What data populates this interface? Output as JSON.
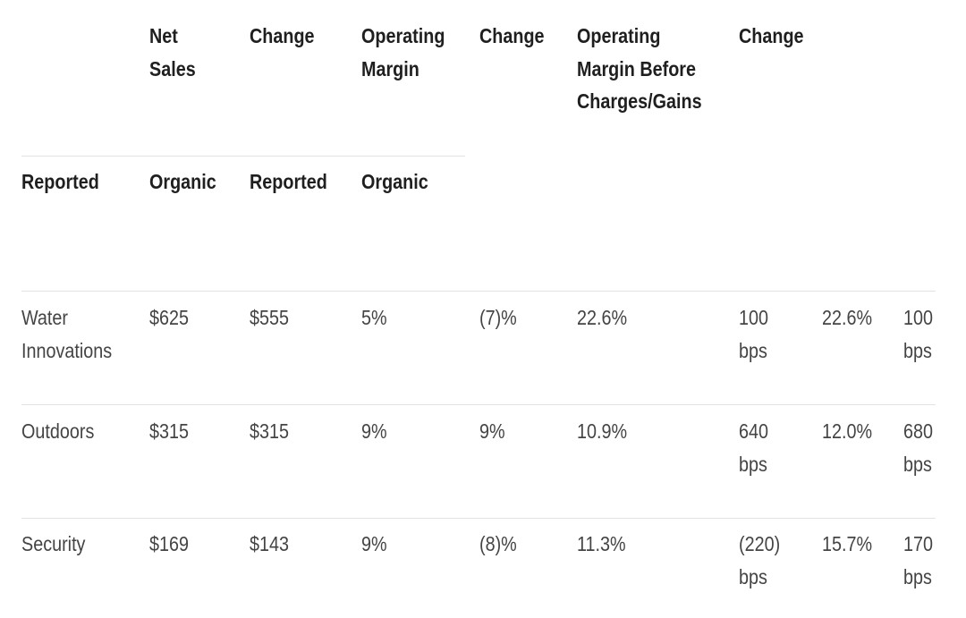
{
  "header_row1": {
    "net_sales": "Net\nSales",
    "change_1": "Change",
    "operating_margin": "Operating\nMargin",
    "change_2": "Change",
    "op_margin_before": "Operating\nMargin Before\nCharges/Gains",
    "change_3": "Change"
  },
  "header_row2": {
    "reported_1": "Reported",
    "organic_1": "Organic",
    "reported_2": "Reported",
    "organic_2": "Organic"
  },
  "rows": [
    {
      "segment": "Water\nInnovations",
      "c1": "$625",
      "c2": "$555",
      "c3": "5%",
      "c4": "(7)%",
      "c5": "22.6%",
      "c6": "100\nbps",
      "c7": "22.6%",
      "c8": "100\nbps"
    },
    {
      "segment": "Outdoors",
      "c1": "$315",
      "c2": "$315",
      "c3": "9%",
      "c4": "9%",
      "c5": "10.9%",
      "c6": "640\nbps",
      "c7": "12.0%",
      "c8": "680\nbps"
    },
    {
      "segment": "Security",
      "c1": "$169",
      "c2": "$143",
      "c3": "9%",
      "c4": "(8)%",
      "c5": "11.3%",
      "c6": "(220)\nbps",
      "c7": "15.7%",
      "c8": "170\nbps"
    }
  ]
}
